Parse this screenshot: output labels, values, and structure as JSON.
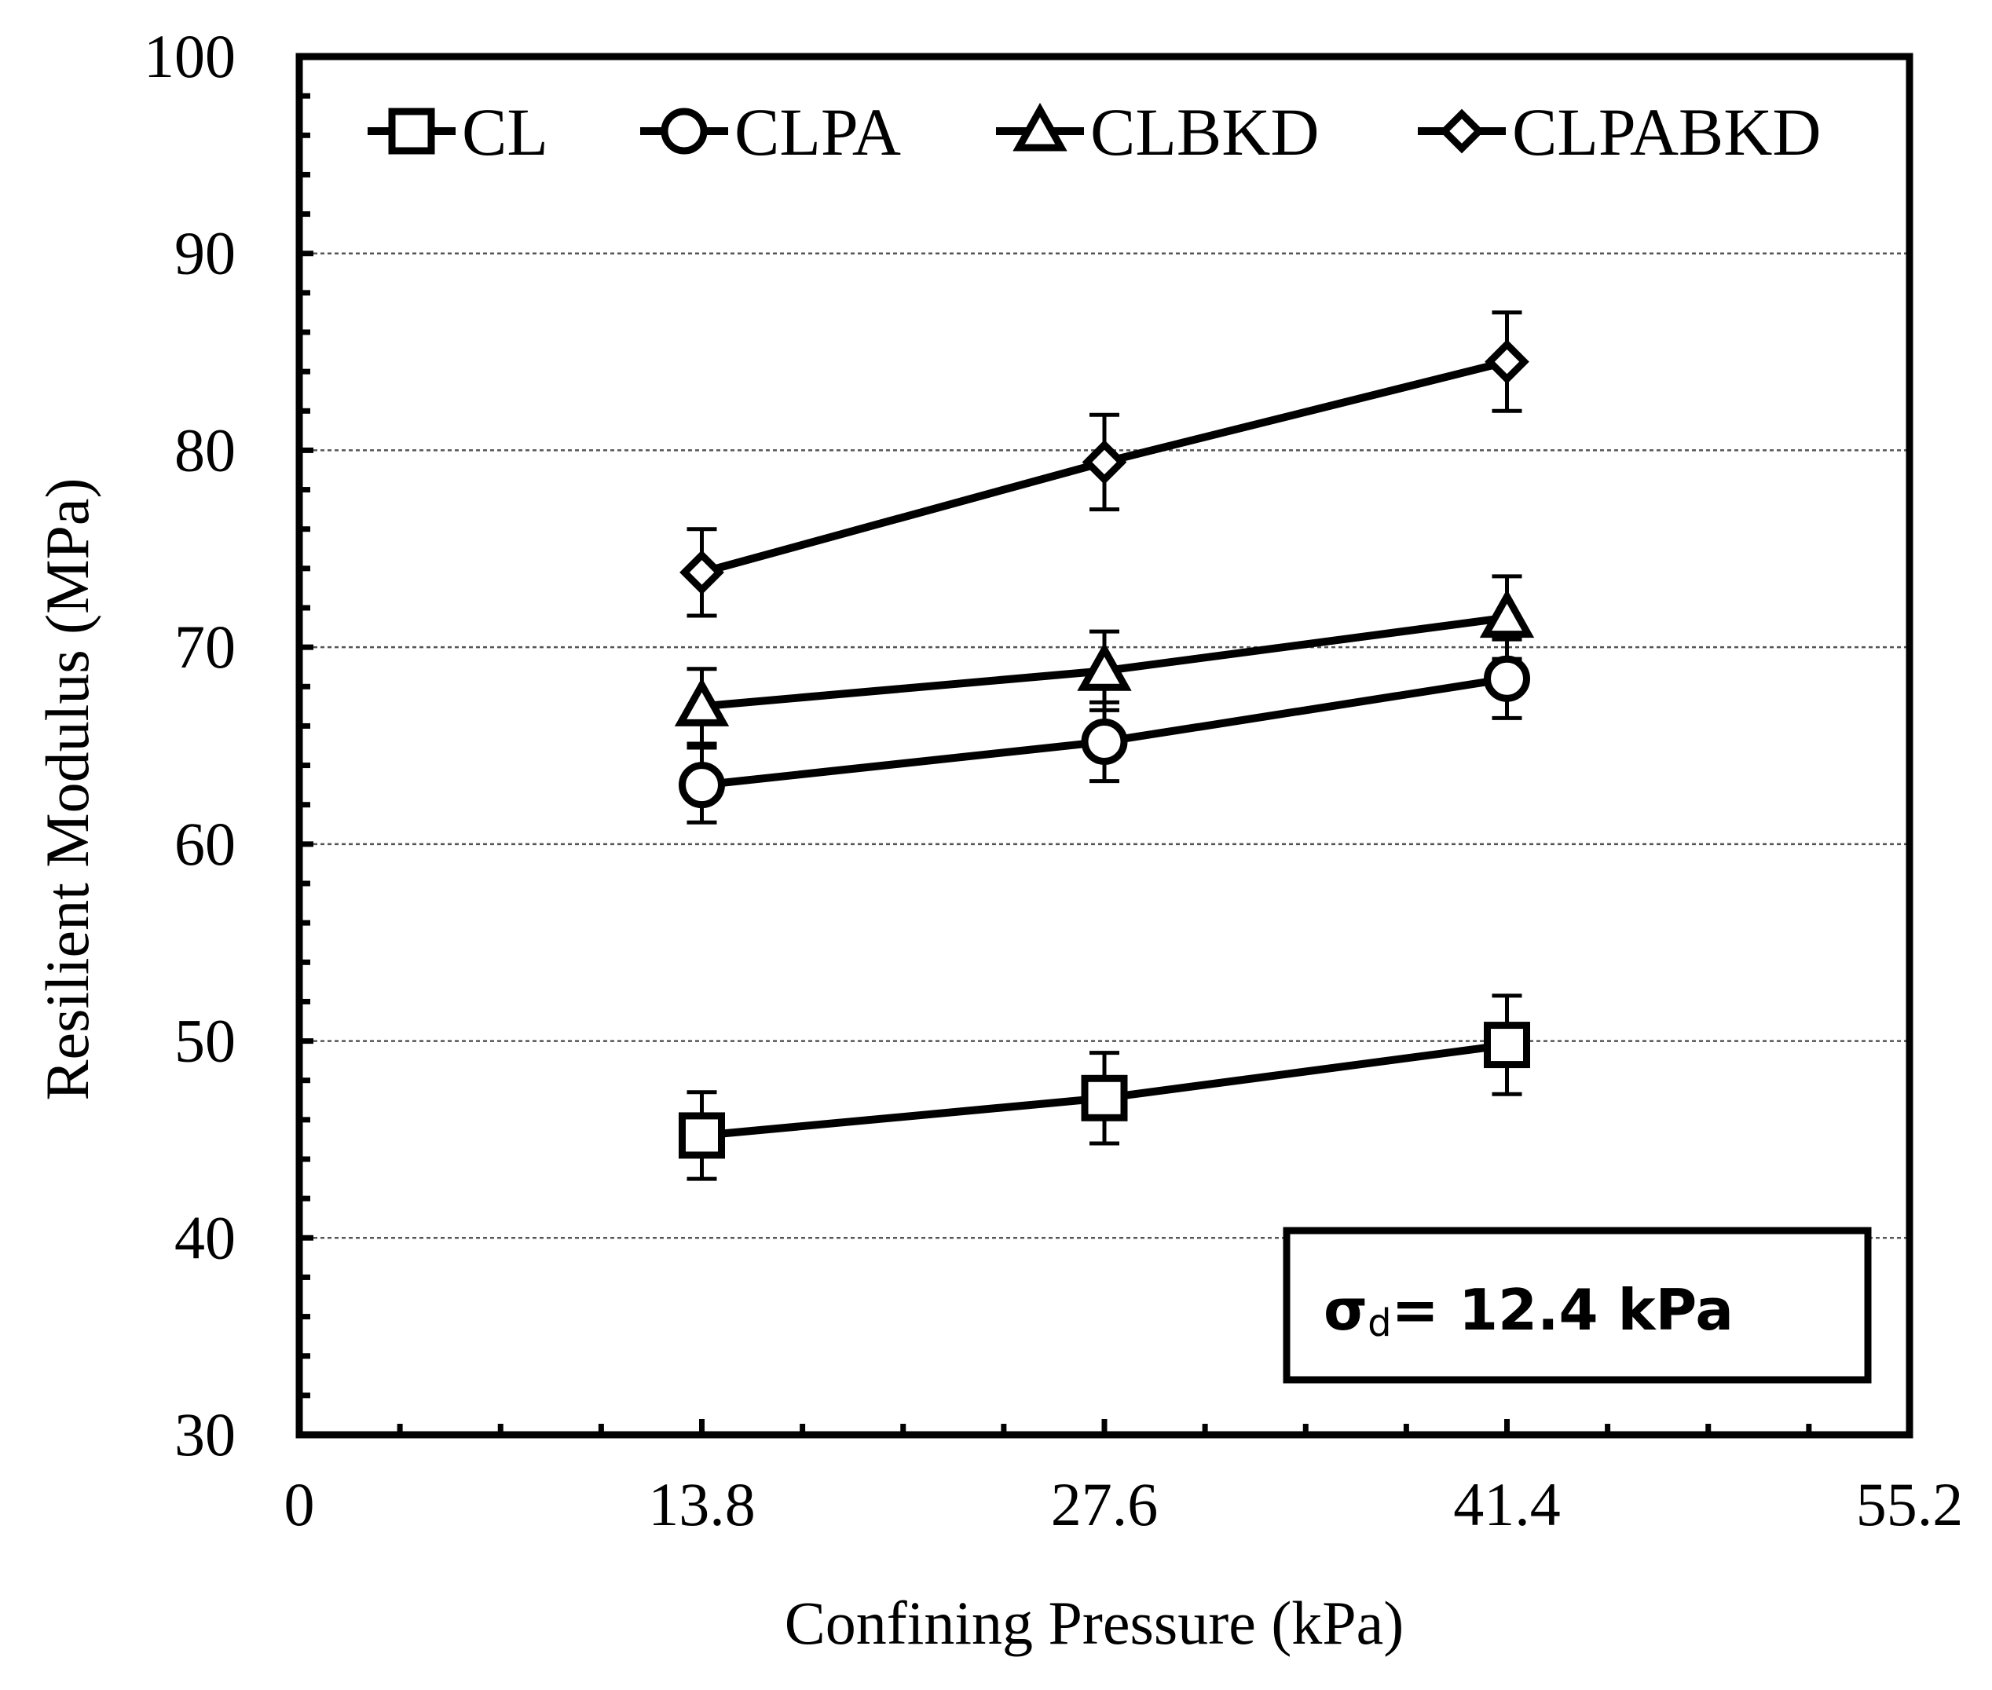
{
  "chart_data": {
    "type": "line",
    "title": "",
    "xlabel": "Confining Pressure (kPa)",
    "ylabel": "Resilient Modulus (MPa)",
    "xlim": [
      0,
      55.2
    ],
    "ylim": [
      30,
      100
    ],
    "xticks": [
      0,
      13.8,
      27.6,
      41.4,
      55.2
    ],
    "xtick_labels": [
      "0",
      "13.8",
      "27.6",
      "41.4",
      "55.2"
    ],
    "yticks": [
      30,
      40,
      50,
      60,
      70,
      80,
      90,
      100
    ],
    "ytick_labels": [
      "30",
      "40",
      "50",
      "60",
      "70",
      "80",
      "90",
      "100"
    ],
    "grid": "horizontal dashed",
    "legend_position": "top",
    "x": [
      13.8,
      27.6,
      41.4
    ],
    "series": [
      {
        "name": "CL",
        "marker": "square",
        "values": [
          45.2,
          47.1,
          49.8
        ],
        "error": [
          2.2,
          2.3,
          2.5
        ]
      },
      {
        "name": "CLPA",
        "marker": "circle",
        "values": [
          63.0,
          65.2,
          68.4
        ],
        "error": [
          1.9,
          2.0,
          2.0
        ]
      },
      {
        "name": "CLBKD",
        "marker": "triangle",
        "values": [
          67.0,
          68.8,
          71.5
        ],
        "error": [
          1.9,
          2.0,
          2.1
        ]
      },
      {
        "name": "CLPABKD",
        "marker": "diamond",
        "values": [
          73.8,
          79.4,
          84.5
        ],
        "error": [
          2.2,
          2.4,
          2.5
        ]
      }
    ],
    "annotation": {
      "sigma": "σ",
      "subscript": "d",
      "text": "= 12.4 kPa"
    },
    "colors": {
      "line": "#000000",
      "marker_fill": "#ffffff",
      "grid": "#555555"
    }
  }
}
